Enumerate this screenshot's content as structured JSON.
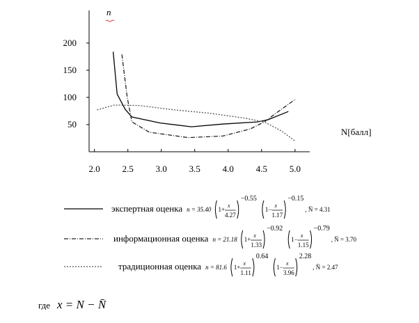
{
  "chart_data": {
    "type": "line",
    "y_label": "n",
    "x_label": "N[балл]",
    "xlim": [
      1.92,
      5.22
    ],
    "ylim": [
      0,
      260
    ],
    "xticks": [
      {
        "value": 2.0,
        "label": "2.0"
      },
      {
        "value": 2.5,
        "label": "2.5"
      },
      {
        "value": 3.0,
        "label": "3.0"
      },
      {
        "value": 3.5,
        "label": "3.5"
      },
      {
        "value": 4.0,
        "label": "4.0"
      },
      {
        "value": 4.5,
        "label": "4.5"
      },
      {
        "value": 5.0,
        "label": "5.0"
      }
    ],
    "yticks": [
      50,
      100,
      150,
      200
    ],
    "series": [
      {
        "name": "экспертная оценка",
        "color": "#000000",
        "dash": "none",
        "x": [
          2.28,
          2.34,
          2.46,
          2.56,
          2.98,
          3.45,
          3.92,
          4.44,
          4.6,
          4.9
        ],
        "values": [
          184,
          106,
          78,
          64,
          53,
          46,
          51,
          55,
          59,
          74
        ],
        "formula": {
          "lhs": "n = 35.40",
          "p1": "1+",
          "n1": "x",
          "d1": "4.27",
          "e1": "−0.55",
          "p2": "1−",
          "n2": "x",
          "d2": "1.17",
          "e2": "−0.15",
          "tail": ", N̄ = 4.31"
        }
      },
      {
        "name": "информационная оценка",
        "color": "#222222",
        "dash": "6,2,1,2",
        "x": [
          2.41,
          2.49,
          2.56,
          2.82,
          3.4,
          3.92,
          4.33,
          4.54,
          4.75,
          5.01
        ],
        "values": [
          179,
          100,
          55,
          36,
          26,
          29,
          42,
          55,
          74,
          97
        ],
        "formula": {
          "lhs": "n = 21.18",
          "p1": "1+",
          "n1": "x",
          "d1": "1.33",
          "e1": "−0.92",
          "p2": "1−",
          "n2": "x",
          "d2": "1.15",
          "e2": "−0.79",
          "tail": ", N̄ = 3.70"
        }
      },
      {
        "name": "традиционная оценка",
        "color": "#555555",
        "dash": "2,2",
        "x": [
          2.04,
          2.3,
          2.67,
          3.2,
          3.72,
          4.24,
          4.54,
          4.8,
          5.01
        ],
        "values": [
          77,
          86,
          85,
          77,
          71,
          62,
          55,
          38,
          19
        ],
        "formula": {
          "lhs": "n = 81.6",
          "p1": "1+",
          "n1": "x",
          "d1": "1.11",
          "e1": "0.64",
          "p2": "1−",
          "n2": "x",
          "d2": "3.96",
          "e2": "2.28",
          "tail": ", N̄ = 2.47"
        }
      }
    ]
  },
  "footnote": {
    "prefix": "где",
    "expr": "x = N − N̄"
  }
}
